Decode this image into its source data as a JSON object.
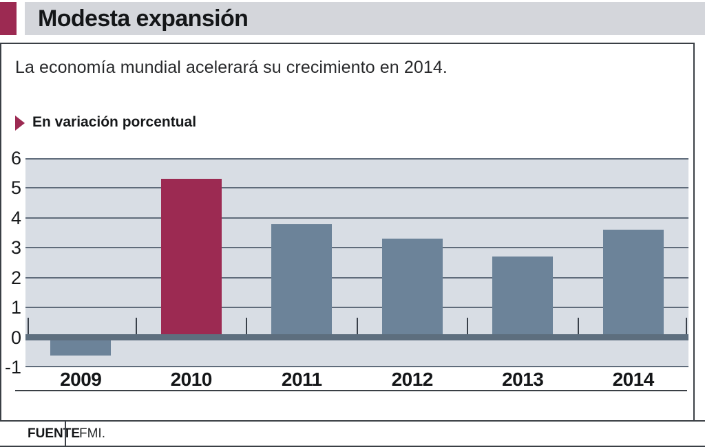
{
  "header": {
    "title": "Modesta expansión",
    "accent_color": "#9c2a52",
    "band_color": "#d4d6db"
  },
  "subtitle": "La economía mundial acelerará su crecimiento en 2014.",
  "kicker": "En variación porcentual",
  "source": {
    "label": "FUENTE",
    "value": "FMI."
  },
  "chart_data": {
    "type": "bar",
    "title": "Modesta expansión",
    "subtitle": "La economía mundial acelerará su crecimiento en 2014.",
    "units_label": "En variación porcentual",
    "categories": [
      "2009",
      "2010",
      "2011",
      "2012",
      "2013",
      "2014"
    ],
    "values": [
      -0.6,
      5.3,
      3.8,
      3.3,
      2.7,
      3.6
    ],
    "highlight_index": 1,
    "highlight_color": "#9c2a52",
    "bar_color": "#6c8399",
    "plot_bg": "#d8dde4",
    "grid_color": "#5f6b7a",
    "zero_line_color": "#5d6e7e",
    "tick_color": "#394049",
    "ylim": [
      -1,
      6
    ],
    "yticks": [
      6,
      5,
      4,
      3,
      2,
      1,
      0,
      -1
    ],
    "grid": true,
    "legend_position": "none",
    "xlabel": "",
    "ylabel": "",
    "source": "FMI."
  }
}
